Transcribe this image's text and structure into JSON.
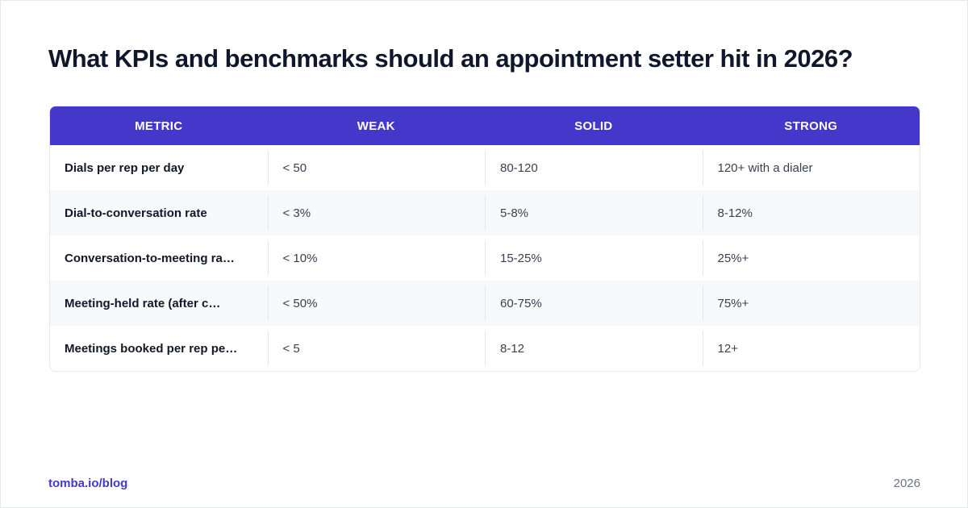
{
  "header": {
    "title": "What KPIs and benchmarks should an appointment setter hit in 2026?"
  },
  "table": {
    "columns": [
      "METRIC",
      "WEAK",
      "SOLID",
      "STRONG"
    ],
    "rows": [
      [
        "Dials per rep per day",
        "< 50",
        "80-120",
        "120+ with a dialer"
      ],
      [
        "Dial-to-conversation rate",
        "< 3%",
        "5-8%",
        "8-12%"
      ],
      [
        "Conversation-to-meeting ra…",
        "< 10%",
        "15-25%",
        "25%+"
      ],
      [
        "Meeting-held rate (after c…",
        "< 50%",
        "60-75%",
        "75%+"
      ],
      [
        "Meetings booked per rep pe…",
        "< 5",
        "8-12",
        "12+"
      ]
    ]
  },
  "footer": {
    "link": "tomba.io/blog",
    "year": "2026"
  }
}
